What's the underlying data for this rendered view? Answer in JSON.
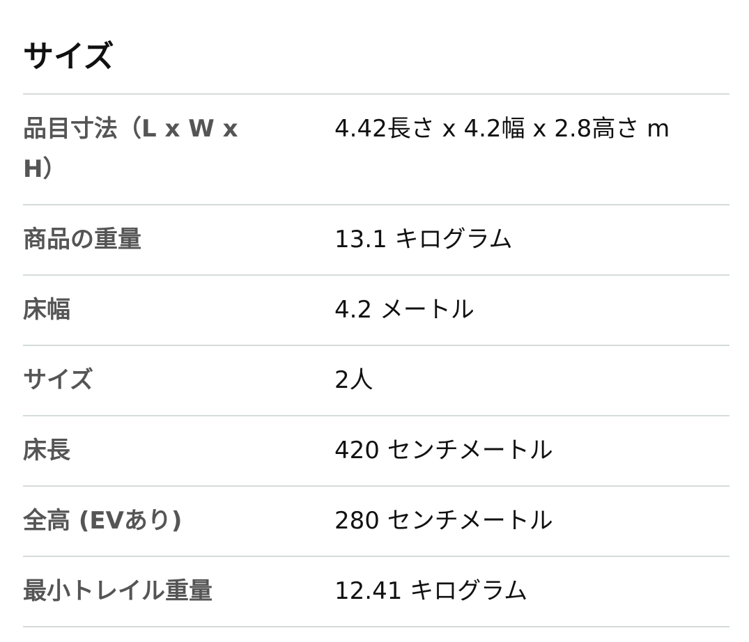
{
  "section_title": "サイズ",
  "rows": [
    {
      "label": "品目寸法（L x W x H）",
      "value": "4.42長さ x 4.2幅 x 2.8高さ m"
    },
    {
      "label": "商品の重量",
      "value": "13.1 キログラム"
    },
    {
      "label": "床幅",
      "value": "4.2 メートル"
    },
    {
      "label": "サイズ",
      "value": "2人"
    },
    {
      "label": "床長",
      "value": "420 センチメートル"
    },
    {
      "label": "全高 (EVあり)",
      "value": "280 センチメートル"
    },
    {
      "label": "最小トレイル重量",
      "value": "12.41 キログラム"
    }
  ]
}
